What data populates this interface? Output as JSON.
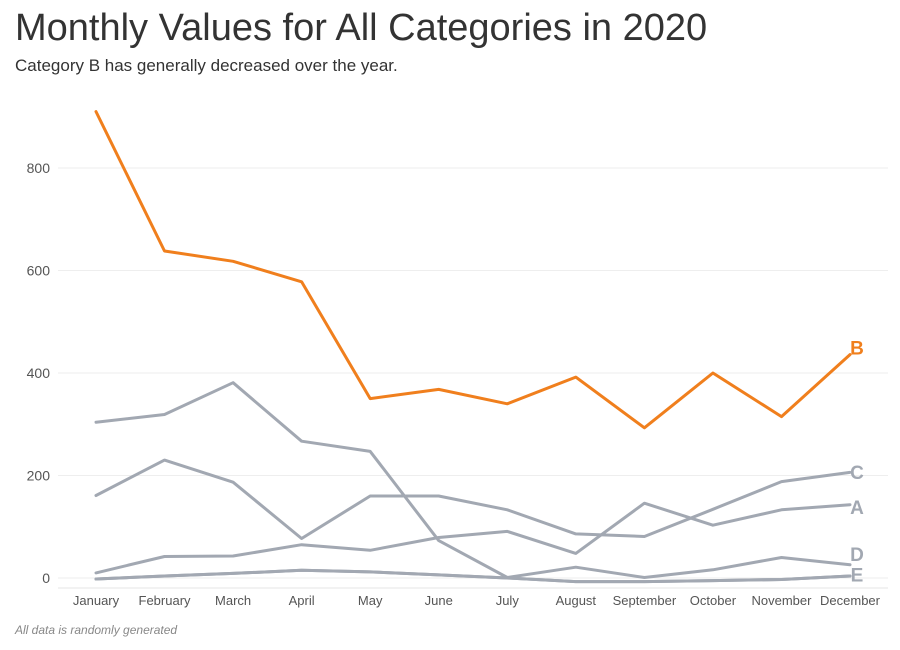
{
  "title": "Monthly Values for All Categories in 2020",
  "subtitle": "Category B has generally decreased over the year.",
  "footnote": "All data is randomly generated",
  "chart_data": {
    "type": "line",
    "title": "Monthly Values for All Categories in 2020",
    "subtitle": "Category B has generally decreased over the year.",
    "xlabel": "",
    "ylabel": "",
    "categories": [
      "January",
      "February",
      "March",
      "April",
      "May",
      "June",
      "July",
      "August",
      "September",
      "October",
      "November",
      "December"
    ],
    "ylim": [
      -10,
      950
    ],
    "yticks": [
      0,
      200,
      400,
      600,
      800
    ],
    "grid": true,
    "legend": "direct labels at line ends",
    "series": [
      {
        "name": "B",
        "color": "#f07f1d",
        "values": [
          910,
          638,
          618,
          578,
          350,
          368,
          340,
          392,
          293,
          400,
          315,
          436
        ]
      },
      {
        "name": "",
        "color": "#a2a8b2",
        "values": [
          304,
          319,
          381,
          267,
          247,
          73,
          1,
          21,
          1,
          16,
          40,
          26
        ]
      },
      {
        "name": "C",
        "color": "#a2a8b2",
        "values": [
          161,
          230,
          187,
          77,
          160,
          160,
          133,
          86,
          81,
          134,
          188,
          206
        ]
      },
      {
        "name": "A",
        "color": "#a2a8b2",
        "values": [
          10,
          42,
          43,
          65,
          54,
          79,
          91,
          48,
          146,
          103,
          133,
          143
        ]
      },
      {
        "name": "D",
        "color": "#a2a8b2",
        "values": [
          -2,
          4,
          9,
          15,
          12,
          6,
          0,
          -7,
          -7,
          -5,
          -3,
          4
        ]
      },
      {
        "name": "E",
        "color": "#a2a8b2",
        "values": [
          -2,
          4,
          9,
          15,
          12,
          6,
          0,
          -7,
          -7,
          -5,
          -3,
          4
        ]
      }
    ],
    "end_labels": [
      {
        "text": "B",
        "color": "#f07f1d",
        "value": 450
      },
      {
        "text": "C",
        "color": "#a2a8b2",
        "value": 207
      },
      {
        "text": "A",
        "color": "#a2a8b2",
        "value": 139
      },
      {
        "text": "D",
        "color": "#a2a8b2",
        "value": 47
      },
      {
        "text": "E",
        "color": "#a2a8b2",
        "value": 7
      }
    ]
  }
}
